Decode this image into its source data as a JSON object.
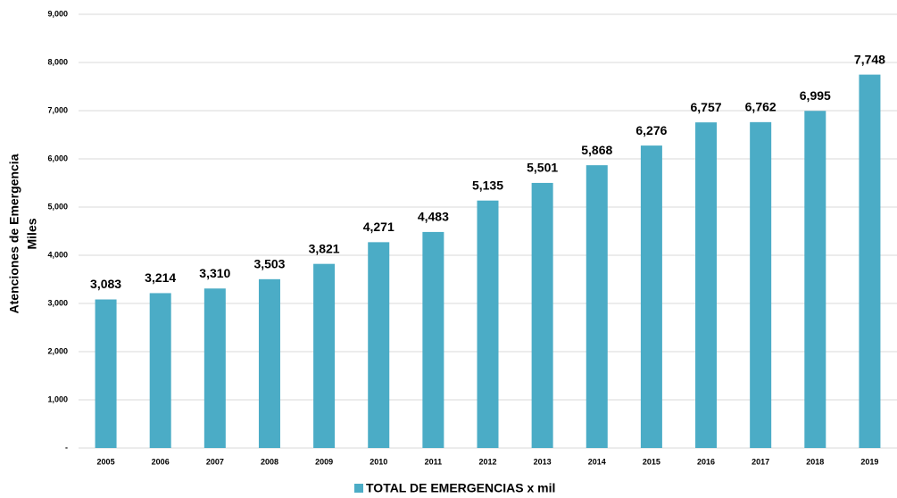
{
  "chart_data": {
    "type": "bar",
    "ylabel": [
      "Atenciones de Emergencia",
      "Miles"
    ],
    "categories": [
      "2005",
      "2006",
      "2007",
      "2008",
      "2009",
      "2010",
      "2011",
      "2012",
      "2013",
      "2014",
      "2015",
      "2016",
      "2017",
      "2018",
      "2019"
    ],
    "series": [
      {
        "name": "TOTAL DE EMERGENCIAS x mil",
        "color": "#4bacc6",
        "values": [
          3083,
          3214,
          3310,
          3503,
          3821,
          4271,
          4483,
          5135,
          5501,
          5868,
          6276,
          6757,
          6762,
          6995,
          7748
        ],
        "value_labels": [
          "3,083",
          "3,214",
          "3,310",
          "3,503",
          "3,821",
          "4,271",
          "4,483",
          "5,135",
          "5,501",
          "5,868",
          "6,276",
          "6,757",
          "6,762",
          "6,995",
          "7,748"
        ]
      }
    ],
    "ylim": [
      0,
      9000
    ],
    "yticks": [
      {
        "value": 0,
        "label": "-"
      },
      {
        "value": 1000,
        "label": "1,000"
      },
      {
        "value": 2000,
        "label": "2,000"
      },
      {
        "value": 3000,
        "label": "3,000"
      },
      {
        "value": 4000,
        "label": "4,000"
      },
      {
        "value": 5000,
        "label": "5,000"
      },
      {
        "value": 6000,
        "label": "6,000"
      },
      {
        "value": 7000,
        "label": "7,000"
      },
      {
        "value": 8000,
        "label": "8,000"
      },
      {
        "value": 9000,
        "label": "9,000"
      }
    ],
    "grid": true,
    "legend": "bottom"
  }
}
